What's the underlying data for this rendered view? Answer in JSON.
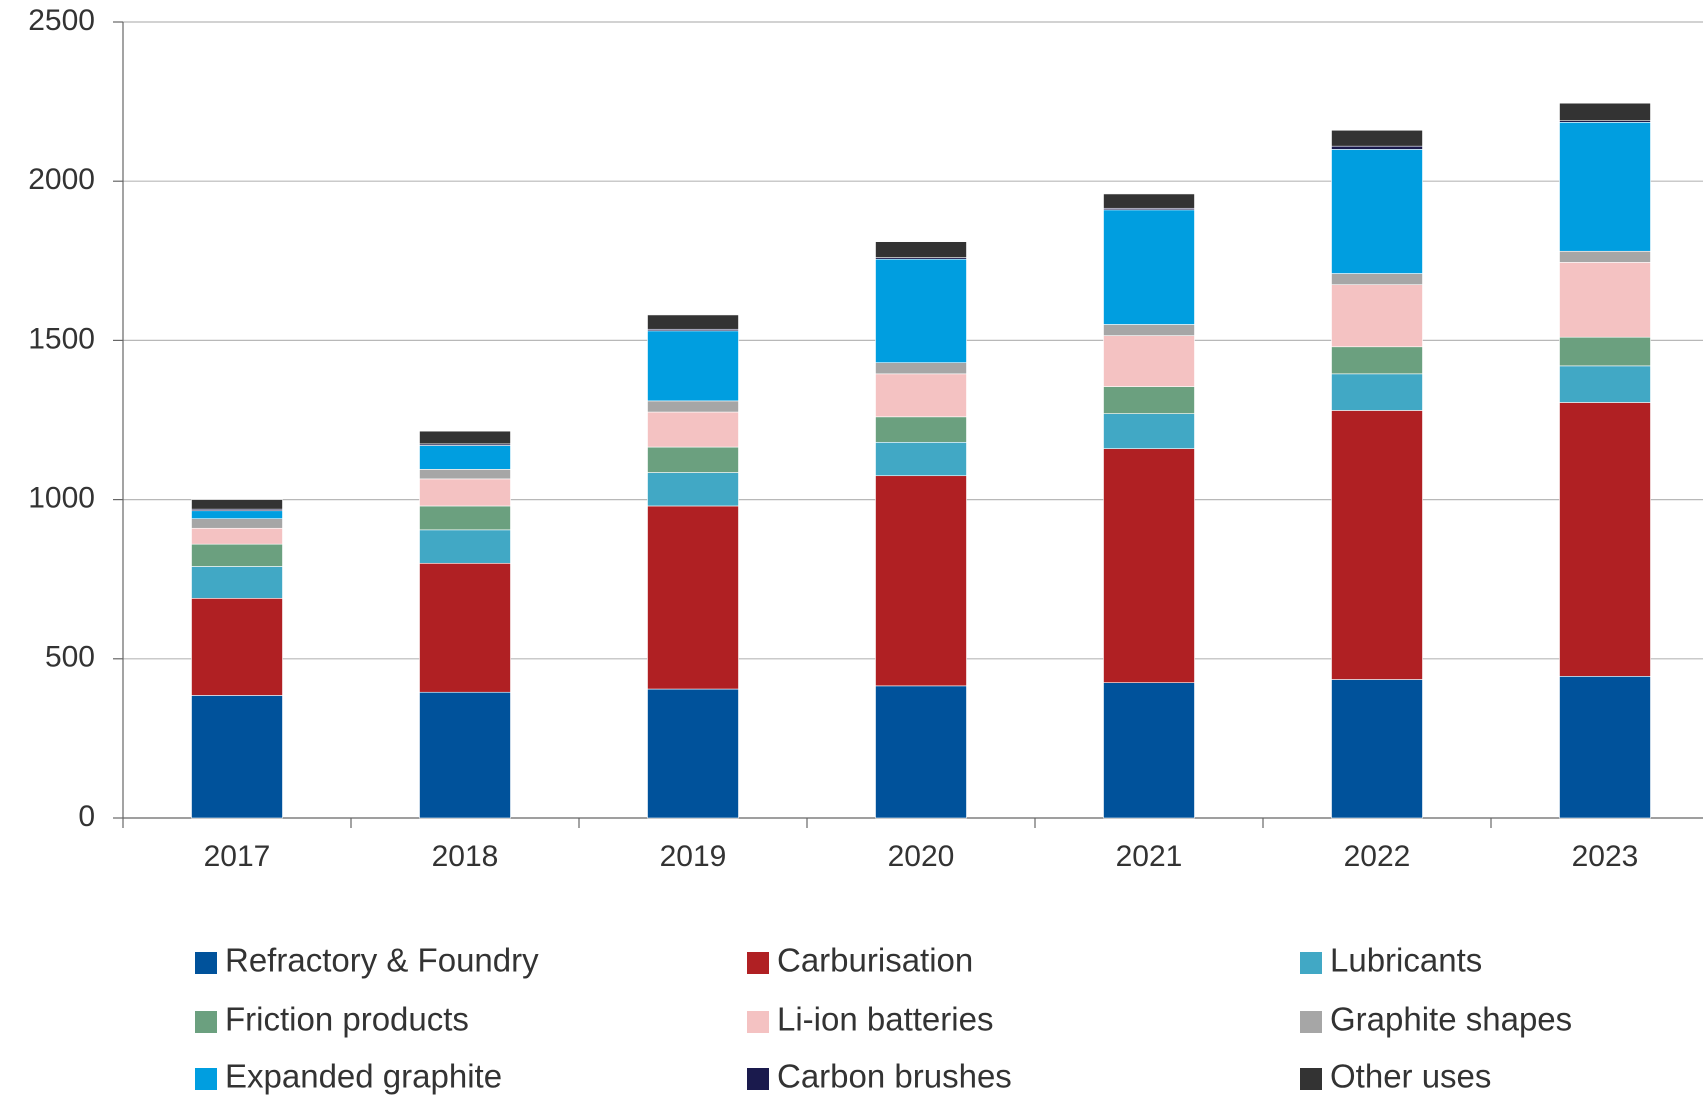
{
  "chart_data": {
    "type": "stacked_bar",
    "categories": [
      "2017",
      "2018",
      "2019",
      "2020",
      "2021",
      "2022",
      "2023"
    ],
    "series": [
      {
        "name": "Refractory & Foundry",
        "color": "#00529b",
        "values": [
          385,
          395,
          405,
          415,
          425,
          435,
          445
        ]
      },
      {
        "name": "Carburisation",
        "color": "#b02023",
        "values": [
          305,
          405,
          575,
          660,
          735,
          845,
          860
        ]
      },
      {
        "name": "Lubricants",
        "color": "#41a8c5",
        "values": [
          100,
          105,
          105,
          105,
          110,
          115,
          115
        ]
      },
      {
        "name": "Friction products",
        "color": "#6ba07f",
        "values": [
          70,
          75,
          80,
          80,
          85,
          85,
          90
        ]
      },
      {
        "name": "Li-ion batteries",
        "color": "#f4c2c2",
        "values": [
          50,
          85,
          110,
          135,
          160,
          195,
          235
        ]
      },
      {
        "name": "Graphite shapes",
        "color": "#a6a6a6",
        "values": [
          30,
          30,
          35,
          35,
          35,
          35,
          35
        ]
      },
      {
        "name": "Expanded graphite",
        "color": "#009ee0",
        "values": [
          25,
          75,
          220,
          325,
          360,
          390,
          405
        ]
      },
      {
        "name": "Carbon brushes",
        "color": "#1a1a4d",
        "values": [
          5,
          5,
          5,
          5,
          5,
          10,
          5
        ]
      },
      {
        "name": "Other uses",
        "color": "#333333",
        "values": [
          30,
          40,
          45,
          50,
          45,
          50,
          55
        ]
      }
    ],
    "ylim": [
      0,
      2500
    ],
    "yticks": [
      0,
      500,
      1000,
      1500,
      2000,
      2500
    ],
    "grid": true
  }
}
